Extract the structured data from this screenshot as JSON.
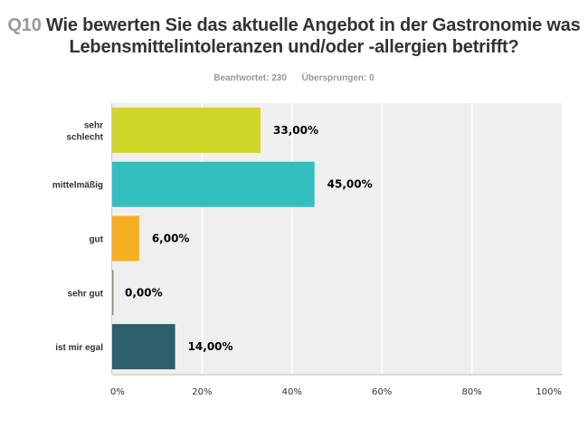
{
  "header": {
    "question_number": "Q10",
    "title": "Wie bewerten Sie das aktuelle Angebot in der Gastronomie was",
    "title_line2": "Lebensmittelintoleranzen und/oder -allergien betrifft?",
    "answered": "Beantwortet: 230",
    "skipped": "Übersprungen: 0"
  },
  "chart_data": {
    "type": "bar",
    "orientation": "horizontal",
    "title": "Wie bewerten Sie das aktuelle Angebot in der Gastronomie was Lebensmittelintoleranzen und/oder -allergien betrifft?",
    "xlabel": "",
    "ylabel": "",
    "categories": [
      [
        "sehr",
        "schlecht"
      ],
      [
        "mittelmäßig"
      ],
      [
        "gut"
      ],
      [
        "sehr gut"
      ],
      [
        "ist mir egal"
      ]
    ],
    "values": [
      33,
      45,
      6,
      0,
      14
    ],
    "value_labels": [
      "33,00%",
      "45,00%",
      "6,00%",
      "0,00%",
      "14,00%"
    ],
    "colors": [
      "#d0d52a",
      "#33bebf",
      "#f7ae21",
      "#8c8c84",
      "#2e5f6d"
    ],
    "xlim": [
      0,
      100
    ],
    "xticks": [
      0,
      20,
      40,
      60,
      80,
      100
    ],
    "xtick_labels": [
      "0%",
      "20%",
      "40%",
      "60%",
      "80%",
      "100%"
    ],
    "grid": true,
    "legend": "none",
    "plot_background": "#efefef"
  }
}
